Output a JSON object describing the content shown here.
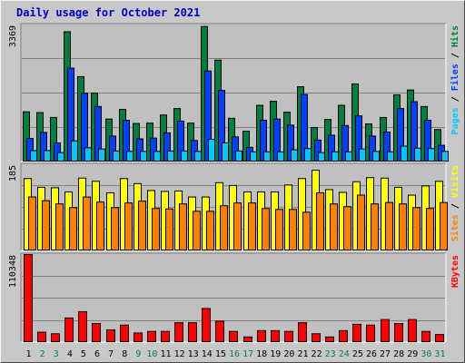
{
  "title": "Daily usage for October 2021",
  "colors": {
    "hits": "#008040",
    "files": "#0040ff",
    "pages": "#00c8ff",
    "visits": "#ffff00",
    "sites": "#ff8000",
    "kbytes": "#ff0000",
    "weekday_label": "#000000",
    "weekend_label": "#00805c"
  },
  "chart_data": [
    {
      "type": "bar",
      "panel": "hits-files-pages",
      "categories": [
        "1",
        "2",
        "3",
        "4",
        "5",
        "6",
        "7",
        "8",
        "9",
        "10",
        "11",
        "12",
        "13",
        "14",
        "15",
        "16",
        "17",
        "18",
        "19",
        "20",
        "21",
        "22",
        "23",
        "24",
        "25",
        "26",
        "27",
        "28",
        "29",
        "30",
        "31"
      ],
      "weekend_days": [
        "2",
        "3",
        "9",
        "10",
        "16",
        "17",
        "23",
        "24",
        "30",
        "31"
      ],
      "ymax_label": "3369",
      "ylim": [
        0,
        3369
      ],
      "legend": [
        {
          "label": "Pages",
          "color": "#00c8ff"
        },
        {
          "label": "Files",
          "color": "#0040ff"
        },
        {
          "label": "Hits",
          "color": "#008040"
        }
      ],
      "series": [
        {
          "name": "Hits",
          "values": [
            1220,
            1200,
            1080,
            3200,
            2090,
            1680,
            1040,
            1280,
            930,
            940,
            1140,
            1300,
            940,
            3330,
            2500,
            1060,
            740,
            1380,
            1480,
            1210,
            1840,
            830,
            1030,
            1380,
            1910,
            920,
            1080,
            1640,
            1760,
            1350,
            780
          ]
        },
        {
          "name": "Files",
          "values": [
            560,
            710,
            450,
            2300,
            1680,
            1350,
            620,
            1010,
            550,
            570,
            700,
            990,
            510,
            2230,
            1750,
            600,
            340,
            1010,
            1040,
            890,
            1650,
            520,
            640,
            880,
            1120,
            620,
            720,
            1300,
            1470,
            1010,
            390
          ]
        },
        {
          "name": "Pages",
          "values": [
            260,
            260,
            210,
            500,
            330,
            300,
            250,
            240,
            240,
            240,
            250,
            250,
            240,
            540,
            450,
            250,
            230,
            230,
            230,
            280,
            310,
            210,
            230,
            230,
            300,
            240,
            230,
            370,
            320,
            310,
            240
          ]
        }
      ]
    },
    {
      "type": "bar",
      "panel": "visits-sites",
      "categories": [
        "1",
        "2",
        "3",
        "4",
        "5",
        "6",
        "7",
        "8",
        "9",
        "10",
        "11",
        "12",
        "13",
        "14",
        "15",
        "16",
        "17",
        "18",
        "19",
        "20",
        "21",
        "22",
        "23",
        "24",
        "25",
        "26",
        "27",
        "28",
        "29",
        "30",
        "31"
      ],
      "ymax_label": "185",
      "ylim": [
        0,
        185
      ],
      "legend": [
        {
          "label": "Sites",
          "color": "#ff8000"
        },
        {
          "label": "Visits",
          "color": "#ffff00"
        }
      ],
      "series": [
        {
          "name": "Visits",
          "values": [
            155,
            136,
            135,
            126,
            156,
            149,
            124,
            155,
            144,
            129,
            127,
            128,
            115,
            115,
            146,
            140,
            126,
            126,
            126,
            141,
            155,
            173,
            131,
            125,
            148,
            157,
            156,
            136,
            119,
            139,
            149
          ]
        },
        {
          "name": "Sites",
          "values": [
            115,
            107,
            100,
            92,
            115,
            104,
            92,
            102,
            106,
            90,
            89,
            100,
            84,
            84,
            96,
            102,
            102,
            90,
            88,
            88,
            82,
            124,
            100,
            94,
            119,
            100,
            103,
            100,
            92,
            90,
            103
          ]
        }
      ]
    },
    {
      "type": "bar",
      "panel": "kbytes",
      "categories": [
        "1",
        "2",
        "3",
        "4",
        "5",
        "6",
        "7",
        "8",
        "9",
        "10",
        "11",
        "12",
        "13",
        "14",
        "15",
        "16",
        "17",
        "18",
        "19",
        "20",
        "21",
        "22",
        "23",
        "24",
        "25",
        "26",
        "27",
        "28",
        "29",
        "30",
        "31"
      ],
      "ymax_label": "110348",
      "ylim": [
        0,
        110348
      ],
      "legend": [
        {
          "label": "KBytes",
          "color": "#ff0000"
        }
      ],
      "series": [
        {
          "name": "KBytes",
          "values": [
            110348,
            12000,
            10000,
            30000,
            38000,
            23000,
            15000,
            21000,
            11000,
            13000,
            13000,
            24000,
            24000,
            42000,
            26000,
            13000,
            6000,
            14000,
            14000,
            13000,
            24000,
            10000,
            6000,
            14000,
            22000,
            21000,
            28000,
            23000,
            28000,
            13000,
            9000
          ]
        }
      ]
    }
  ]
}
